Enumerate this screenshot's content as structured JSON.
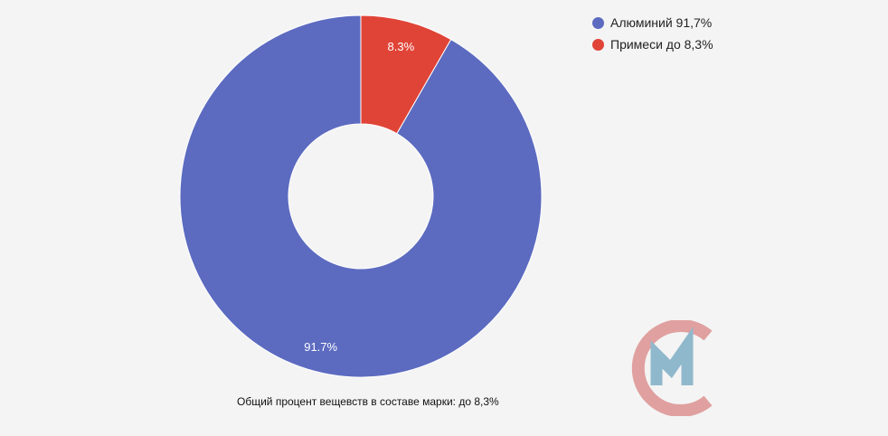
{
  "chart_data": {
    "type": "pie",
    "donut": true,
    "categories": [
      "Алюминий 91,7%",
      "Примеси до 8,3%"
    ],
    "values": [
      91.7,
      8.3
    ],
    "data_labels": [
      "91.7%",
      "8.3%"
    ],
    "colors": [
      "#5c6bc0",
      "#e04437"
    ],
    "legend_placement": "top-right",
    "caption": "Общий процент вещевств в составе марки: до 8,3%"
  },
  "logo": {
    "icon": "cm-logo-icon",
    "colors": {
      "ring": "#e0a0a0",
      "mark": "#90b8cc"
    }
  }
}
